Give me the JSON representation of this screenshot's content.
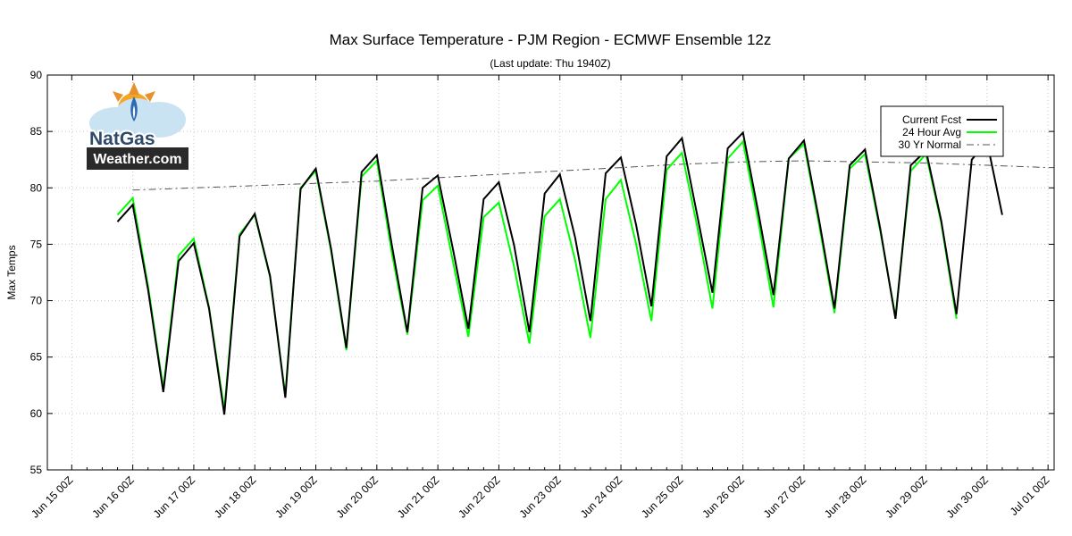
{
  "chart_data": {
    "type": "line",
    "title": "Max Surface Temperature - PJM Region - ECMWF Ensemble 12z",
    "subtitle": "(Last update: Thu 1940Z)",
    "ylabel": "Max Temps",
    "xlabel": "",
    "ylim": [
      55,
      90
    ],
    "yticks": [
      55,
      60,
      65,
      70,
      75,
      80,
      85,
      90
    ],
    "xlim_days": [
      14.6,
      31.1
    ],
    "xtick_labels": [
      "Jun 15 00Z",
      "Jun 16 00Z",
      "Jun 17 00Z",
      "Jun 18 00Z",
      "Jun 19 00Z",
      "Jun 20 00Z",
      "Jun 21 00Z",
      "Jun 22 00Z",
      "Jun 23 00Z",
      "Jun 24 00Z",
      "Jun 25 00Z",
      "Jun 26 00Z",
      "Jun 27 00Z",
      "Jun 28 00Z",
      "Jun 29 00Z",
      "Jun 30 00Z",
      "Jul 01 00Z"
    ],
    "grid": true,
    "legend_position": "top-right",
    "series": [
      {
        "name": "Current Fcst",
        "color": "#000000",
        "style": "solid",
        "x_days": [
          15.75,
          16.0,
          16.25,
          16.5,
          16.75,
          17.0,
          17.25,
          17.5,
          17.75,
          18.0,
          18.25,
          18.5,
          18.75,
          19.0,
          19.25,
          19.5,
          19.75,
          20.0,
          20.25,
          20.5,
          20.75,
          21.0,
          21.25,
          21.5,
          21.75,
          22.0,
          22.25,
          22.5,
          22.75,
          23.0,
          23.25,
          23.5,
          23.75,
          24.0,
          24.25,
          24.5,
          24.75,
          25.0,
          25.25,
          25.5,
          25.75,
          26.0,
          26.25,
          26.5,
          26.75,
          27.0,
          27.25,
          27.5,
          27.75,
          28.0,
          28.25,
          28.5,
          28.75,
          29.0,
          29.25,
          29.5,
          29.75,
          30.0,
          30.25
        ],
        "y": [
          77.0,
          78.5,
          71.0,
          61.9,
          73.5,
          75.1,
          69.3,
          59.9,
          75.7,
          77.7,
          72.2,
          61.4,
          79.9,
          81.7,
          74.6,
          65.8,
          81.4,
          82.9,
          74.8,
          67.2,
          80.0,
          81.1,
          74.5,
          67.5,
          79.0,
          80.5,
          74.9,
          67.2,
          79.5,
          81.2,
          75.6,
          68.2,
          81.3,
          82.7,
          76.7,
          69.5,
          82.8,
          84.4,
          77.6,
          70.7,
          83.5,
          84.9,
          77.9,
          70.5,
          82.6,
          84.2,
          77.1,
          69.3,
          82.0,
          83.4,
          76.4,
          68.4,
          82.0,
          83.3,
          77.1,
          68.8,
          82.5,
          84.1,
          77.6
        ]
      },
      {
        "name": "24 Hour Avg",
        "color": "#00ff00",
        "style": "solid",
        "x_days": [
          15.75,
          16.0,
          16.25,
          16.5,
          16.75,
          17.0,
          17.25,
          17.5,
          17.75,
          18.0,
          18.25,
          18.5,
          18.75,
          19.0,
          19.25,
          19.5,
          19.75,
          20.0,
          20.25,
          20.5,
          20.75,
          21.0,
          21.25,
          21.5,
          21.75,
          22.0,
          22.25,
          22.5,
          22.75,
          23.0,
          23.25,
          23.5,
          23.75,
          24.0,
          24.25,
          24.5,
          24.75,
          25.0,
          25.25,
          25.5,
          25.75,
          26.0,
          26.25,
          26.5,
          26.75,
          27.0,
          27.25,
          27.5,
          27.75,
          28.0,
          28.25,
          28.5,
          28.75,
          29.0,
          29.25,
          29.5
        ],
        "y": [
          77.6,
          79.1,
          71.3,
          62.2,
          74.0,
          75.5,
          69.4,
          60.3,
          75.9,
          77.6,
          72.1,
          61.6,
          80.0,
          81.5,
          74.4,
          65.6,
          81.0,
          82.4,
          74.1,
          67.0,
          78.9,
          80.2,
          73.4,
          66.8,
          77.4,
          78.7,
          73.0,
          66.2,
          77.5,
          79.0,
          73.6,
          66.7,
          79.0,
          80.7,
          75.0,
          68.2,
          81.6,
          83.1,
          76.6,
          69.3,
          82.6,
          84.1,
          77.1,
          69.4,
          82.6,
          83.9,
          76.7,
          68.9,
          81.7,
          83.0,
          76.2,
          68.6,
          81.5,
          83.0,
          76.9,
          68.4
        ]
      },
      {
        "name": "30 Yr Normal",
        "color": "#555555",
        "style": "dash-dot",
        "x_days": [
          16.0,
          17.0,
          18.0,
          19.0,
          20.0,
          21.0,
          22.0,
          23.0,
          24.0,
          25.0,
          26.0,
          27.0,
          28.0,
          29.0,
          30.0,
          31.0,
          31.1
        ],
        "y": [
          79.8,
          80.0,
          80.2,
          80.4,
          80.6,
          80.9,
          81.2,
          81.5,
          81.8,
          82.1,
          82.3,
          82.4,
          82.3,
          82.2,
          82.0,
          81.8,
          81.8
        ]
      }
    ]
  }
}
